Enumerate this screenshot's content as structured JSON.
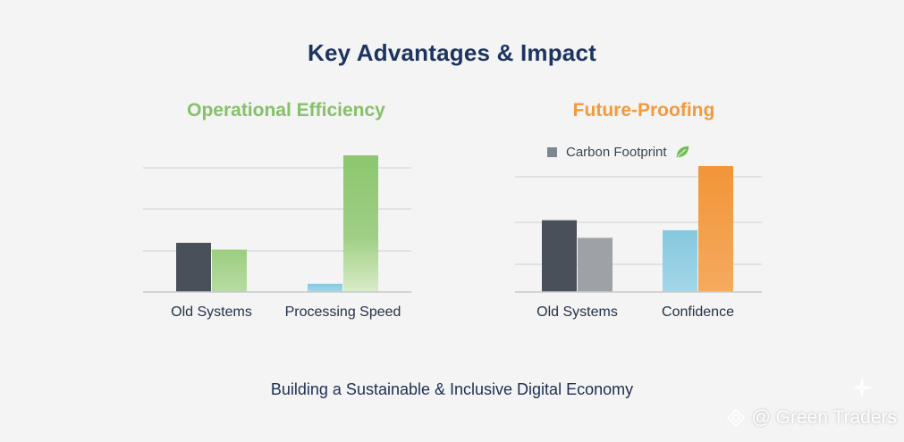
{
  "title": "Key Advantages & Impact",
  "footer": "Building a Sustainable & Inclusive Digital Economy",
  "watermark": "@ Green Traders",
  "colors": {
    "dark": "#4a5059",
    "gray": "#9ea2a7",
    "green_light": "#a6d18b",
    "green_bright": "#8cc66e",
    "blue_light": "#8ccbe0",
    "orange": "#f39a3c",
    "grid": "#d6d8da"
  },
  "chart_data": [
    {
      "type": "bar",
      "title": "Operational Efficiency",
      "categories": [
        "Old Systems",
        "Processing Speed"
      ],
      "ylim": [
        0,
        100
      ],
      "grid": true,
      "series": [
        {
          "name": "",
          "values": [
            36,
            6
          ]
        },
        {
          "name": "",
          "values": [
            31,
            100
          ]
        }
      ]
    },
    {
      "type": "bar",
      "title": "Future-Proofing",
      "legend": [
        "Carbon Footprint"
      ],
      "categories": [
        "Old Systems",
        "Confidence"
      ],
      "ylim": [
        0,
        100
      ],
      "grid": true,
      "series": [
        {
          "name": "",
          "values": [
            57,
            49
          ]
        },
        {
          "name": "",
          "values": [
            43,
            100
          ]
        }
      ]
    }
  ]
}
